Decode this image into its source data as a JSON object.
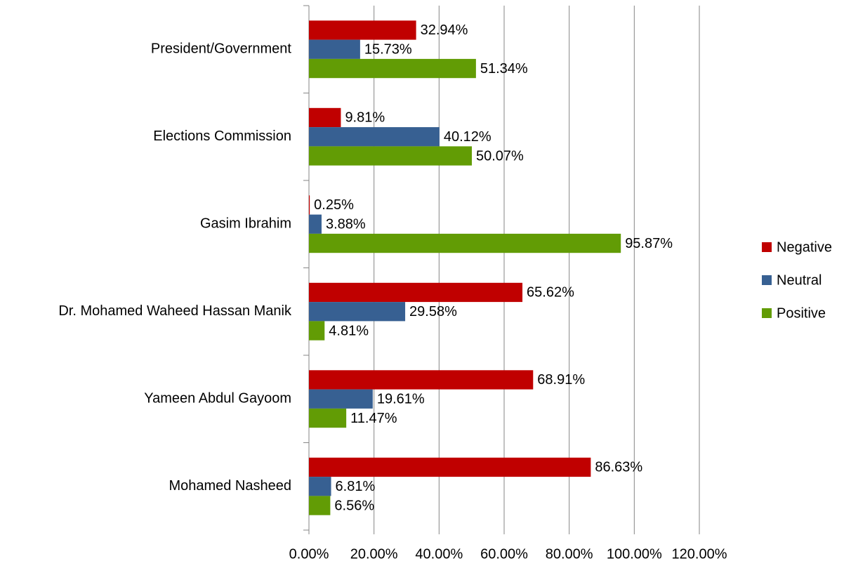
{
  "chart_data": {
    "type": "bar",
    "orientation": "horizontal",
    "categories": [
      "President/Government",
      "Elections Commission",
      "Gasim Ibrahim",
      "Dr. Mohamed Waheed Hassan Manik",
      "Yameen Abdul Gayoom",
      "Mohamed Nasheed"
    ],
    "series": [
      {
        "name": "Negative",
        "color": "#c00000",
        "values": [
          32.94,
          9.81,
          0.25,
          65.62,
          68.91,
          86.63
        ],
        "value_labels": [
          "32.94%",
          "9.81%",
          "0.25%",
          "65.62%",
          "68.91%",
          "86.63%"
        ]
      },
      {
        "name": "Neutral",
        "color": "#376092",
        "values": [
          15.73,
          40.12,
          3.88,
          29.58,
          19.61,
          6.81
        ],
        "value_labels": [
          "15.73%",
          "40.12%",
          "3.88%",
          "29.58%",
          "19.61%",
          "6.81%"
        ]
      },
      {
        "name": "Positive",
        "color": "#629c05",
        "values": [
          51.34,
          50.07,
          95.87,
          4.81,
          11.47,
          6.56
        ],
        "value_labels": [
          "51.34%",
          "50.07%",
          "95.87%",
          "4.81%",
          "11.47%",
          "6.56%"
        ]
      }
    ],
    "xlim": [
      0,
      120
    ],
    "xticks": [
      {
        "value": 0,
        "label": "0.00%"
      },
      {
        "value": 20,
        "label": "20.00%"
      },
      {
        "value": 40,
        "label": "40.00%"
      },
      {
        "value": 60,
        "label": "60.00%"
      },
      {
        "value": 80,
        "label": "80.00%"
      },
      {
        "value": 100,
        "label": "100.00%"
      },
      {
        "value": 120,
        "label": "120.00%"
      }
    ],
    "grid": true,
    "legend": "right"
  }
}
